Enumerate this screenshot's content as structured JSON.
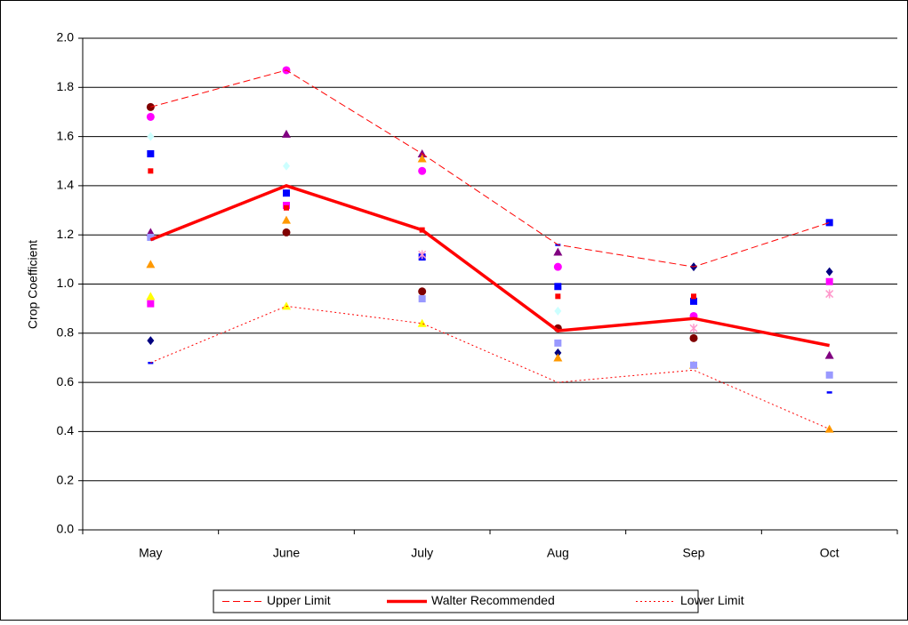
{
  "chart_data": {
    "type": "line",
    "y_label": "Crop Coefficient",
    "categories": [
      "May",
      "June",
      "July",
      "Aug",
      "Sep",
      "Oct"
    ],
    "ylim": [
      0,
      2
    ],
    "yticks": [
      {
        "value": 0,
        "label": "0.0"
      },
      {
        "value": 0.2,
        "label": "0.2"
      },
      {
        "value": 0.4,
        "label": "0.4"
      },
      {
        "value": 0.6,
        "label": "0.6"
      },
      {
        "value": 0.8,
        "label": "0.8"
      },
      {
        "value": 1,
        "label": "1.0"
      },
      {
        "value": 1.2,
        "label": "1.2"
      },
      {
        "value": 1.4,
        "label": "1.4"
      },
      {
        "value": 1.6,
        "label": "1.6"
      },
      {
        "value": 1.8,
        "label": "1.8"
      },
      {
        "value": 2,
        "label": "2.0"
      }
    ],
    "grid": true,
    "legend": "bottom",
    "series": [
      {
        "name": "Upper Limit",
        "color": "#ff0000",
        "dash": "dashed",
        "width": 1,
        "values": [
          1.72,
          1.87,
          1.53,
          1.16,
          1.07,
          1.25
        ]
      },
      {
        "name": "Walter Recommended",
        "color": "#ff0000",
        "dash": "solid",
        "width": 3.5,
        "values": [
          1.18,
          1.4,
          1.22,
          0.81,
          0.86,
          0.75
        ]
      },
      {
        "name": "Lower Limit",
        "color": "#ff0000",
        "dash": "dotted",
        "width": 1,
        "values": [
          0.68,
          0.91,
          0.84,
          0.6,
          0.65,
          0.41
        ]
      }
    ],
    "points": [
      {
        "color": "#000080",
        "marker": "diamond",
        "values": [
          0.77,
          null,
          null,
          0.72,
          1.07,
          1.05
        ]
      },
      {
        "color": "#ff00ff",
        "marker": "square",
        "values": [
          0.92,
          1.32,
          null,
          null,
          null,
          1.01
        ]
      },
      {
        "color": "#ffff00",
        "marker": "triangle",
        "values": [
          0.95,
          0.91,
          0.84,
          null,
          null,
          null
        ]
      },
      {
        "color": "#ccffff",
        "marker": "diamond",
        "values": [
          1.6,
          1.48,
          null,
          0.89,
          null,
          null
        ]
      },
      {
        "color": "#800080",
        "marker": "triangle",
        "values": [
          1.21,
          1.61,
          1.53,
          1.13,
          null,
          0.71
        ]
      },
      {
        "color": "#800000",
        "marker": "circle",
        "values": [
          1.72,
          1.21,
          0.97,
          0.82,
          0.78,
          null
        ]
      },
      {
        "color": "#0000ff",
        "marker": "square",
        "values": [
          1.53,
          1.37,
          1.11,
          0.99,
          0.93,
          1.25
        ]
      },
      {
        "color": "#ff0000",
        "marker": "smallsquare",
        "values": [
          1.46,
          1.31,
          1.22,
          0.95,
          0.95,
          null
        ]
      },
      {
        "color": "#ff00ff",
        "marker": "circle",
        "values": [
          1.68,
          1.87,
          1.46,
          1.07,
          0.87,
          null
        ]
      },
      {
        "color": "#ff9900",
        "marker": "triangle",
        "values": [
          1.08,
          1.26,
          1.51,
          0.7,
          0.67,
          0.41
        ]
      },
      {
        "color": "#9999ff",
        "marker": "square",
        "values": [
          1.19,
          null,
          0.94,
          0.76,
          0.67,
          0.63
        ]
      },
      {
        "color": "#0000ff",
        "marker": "dash",
        "values": [
          0.68,
          null,
          null,
          1.16,
          null,
          0.56
        ]
      },
      {
        "color": "#ff99cc",
        "marker": "star",
        "values": [
          null,
          null,
          1.12,
          null,
          0.82,
          0.96
        ]
      }
    ]
  }
}
